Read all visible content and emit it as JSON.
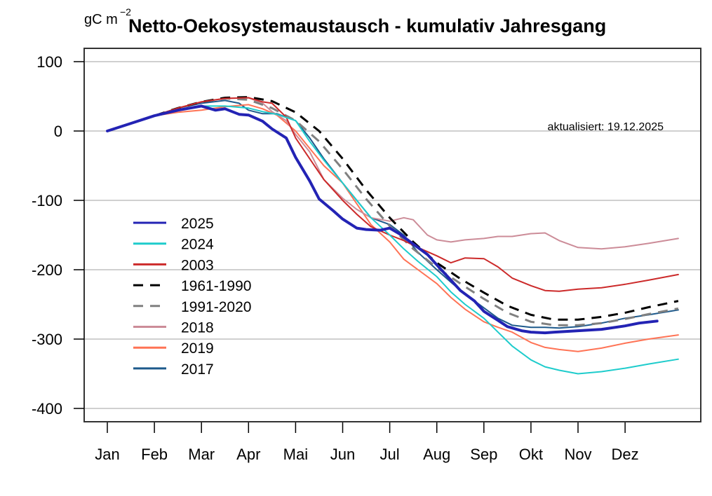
{
  "chart_data": {
    "type": "line",
    "title": "Netto-Oekosystemaustausch - kumulativ Jahresgang",
    "ylabel_unit": "gC m",
    "ylabel_unit_exponent": "−2",
    "xlabel": "",
    "annotation": "aktualisiert: 19.12.2025",
    "x_unit": "months since Jan 1",
    "xlim": [
      -0.5,
      12.3
    ],
    "ylim": [
      -420,
      120
    ],
    "yticks": [
      100,
      0,
      -100,
      -200,
      -300,
      -400
    ],
    "ytick_labels": [
      "100",
      "0",
      "-100",
      "-200",
      "-300",
      "-400"
    ],
    "xticks": [
      0,
      1,
      2,
      3,
      4,
      5,
      6,
      7,
      8,
      9,
      10,
      11
    ],
    "xtick_labels": [
      "Jan",
      "Feb",
      "Mar",
      "Apr",
      "Mai",
      "Jun",
      "Jul",
      "Aug",
      "Sep",
      "Okt",
      "Nov",
      "Dez"
    ],
    "grid": "horizontal",
    "legend_position": "left-center",
    "series": [
      {
        "name": "2025",
        "color": "#2323b4",
        "dash": false,
        "width": 4,
        "x": [
          0,
          0.5,
          1,
          1.5,
          2,
          2.3,
          2.5,
          2.8,
          3,
          3.3,
          3.5,
          3.8,
          4,
          4.3,
          4.5,
          4.8,
          5,
          5.3,
          5.5,
          5.8,
          6,
          6.2,
          6.5,
          6.8,
          7,
          7.3,
          7.5,
          7.8,
          8,
          8.3,
          8.5,
          8.8,
          9,
          9.3,
          9.5,
          10,
          10.5,
          11,
          11.3,
          11.68
        ],
        "y": [
          0,
          11,
          22,
          30,
          36,
          30,
          32,
          24,
          23,
          14,
          3,
          -10,
          -38,
          -72,
          -98,
          -115,
          -127,
          -140,
          -142,
          -143,
          -140,
          -148,
          -163,
          -178,
          -193,
          -215,
          -230,
          -245,
          -260,
          -273,
          -282,
          -288,
          -290,
          -291,
          -290,
          -288,
          -286,
          -281,
          -277,
          -274
        ]
      },
      {
        "name": "2024",
        "color": "#1ecccc",
        "dash": false,
        "width": 2,
        "x": [
          0,
          0.5,
          1,
          1.5,
          2,
          2.5,
          3,
          3.3,
          3.6,
          4,
          4.3,
          4.6,
          5,
          5.3,
          5.6,
          6,
          6.3,
          6.6,
          7,
          7.3,
          7.6,
          8,
          8.3,
          8.6,
          9,
          9.3,
          9.6,
          10,
          10.5,
          11,
          11.5,
          12.13
        ],
        "y": [
          0,
          11,
          22,
          30,
          36,
          36,
          33,
          28,
          24,
          15,
          -15,
          -42,
          -75,
          -100,
          -125,
          -150,
          -170,
          -188,
          -210,
          -232,
          -250,
          -270,
          -290,
          -310,
          -330,
          -340,
          -345,
          -350,
          -347,
          -342,
          -336,
          -329
        ]
      },
      {
        "name": "2003",
        "color": "#cc2a2a",
        "dash": false,
        "width": 2,
        "x": [
          0,
          0.5,
          1,
          1.5,
          2,
          2.5,
          3,
          3.3,
          3.5,
          3.8,
          4,
          4.3,
          4.6,
          5,
          5.3,
          5.6,
          6,
          6.3,
          6.6,
          7,
          7.3,
          7.6,
          8,
          8.3,
          8.6,
          9,
          9.3,
          9.6,
          10,
          10.5,
          11,
          11.5,
          12.13
        ],
        "y": [
          0,
          11,
          22,
          33,
          42,
          47,
          48,
          42,
          40,
          20,
          -10,
          -40,
          -70,
          -100,
          -120,
          -138,
          -150,
          -158,
          -168,
          -180,
          -190,
          -183,
          -184,
          -196,
          -212,
          -223,
          -230,
          -231,
          -228,
          -226,
          -221,
          -215,
          -207
        ]
      },
      {
        "name": "1961-1990",
        "color": "#000000",
        "dash": true,
        "width": 3,
        "x": [
          0,
          0.5,
          1,
          1.5,
          2,
          2.5,
          3,
          3.5,
          4,
          4.5,
          5,
          5.5,
          6,
          6.5,
          7,
          7.5,
          8,
          8.5,
          9,
          9.5,
          10,
          10.5,
          11,
          11.5,
          12.13
        ],
        "y": [
          0,
          11,
          22,
          33,
          42,
          48,
          49,
          43,
          27,
          0,
          -40,
          -85,
          -125,
          -160,
          -190,
          -213,
          -233,
          -252,
          -265,
          -272,
          -272,
          -268,
          -262,
          -254,
          -245
        ]
      },
      {
        "name": "1991-2020",
        "color": "#808080",
        "dash": true,
        "width": 3,
        "x": [
          0,
          0.5,
          1,
          1.5,
          2,
          2.5,
          3,
          3.5,
          4,
          4.5,
          5,
          5.5,
          6,
          6.5,
          7,
          7.5,
          8,
          8.5,
          9,
          9.5,
          10,
          10.5,
          11,
          11.5,
          12.13
        ],
        "y": [
          0,
          11,
          22,
          33,
          42,
          47,
          45,
          33,
          15,
          -15,
          -55,
          -98,
          -137,
          -170,
          -197,
          -220,
          -242,
          -262,
          -275,
          -280,
          -280,
          -277,
          -271,
          -264,
          -256
        ]
      },
      {
        "name": "2018",
        "color": "#cc8c98",
        "dash": false,
        "width": 2,
        "x": [
          0,
          0.5,
          1,
          1.5,
          2,
          2.5,
          3,
          3.3,
          3.5,
          3.8,
          4,
          4.3,
          4.6,
          5,
          5.3,
          5.6,
          6,
          6.3,
          6.5,
          6.8,
          7,
          7.3,
          7.6,
          8,
          8.3,
          8.6,
          9,
          9.3,
          9.6,
          10,
          10.5,
          11,
          11.5,
          12.13
        ],
        "y": [
          0,
          11,
          22,
          33,
          42,
          47,
          48,
          40,
          28,
          15,
          -5,
          -30,
          -70,
          -97,
          -113,
          -125,
          -130,
          -125,
          -128,
          -150,
          -157,
          -160,
          -157,
          -155,
          -152,
          -152,
          -148,
          -147,
          -158,
          -168,
          -170,
          -167,
          -162,
          -155
        ]
      },
      {
        "name": "2019",
        "color": "#ff7355",
        "dash": false,
        "width": 2,
        "x": [
          0,
          0.5,
          1,
          1.5,
          2,
          2.5,
          3,
          3.3,
          3.6,
          4,
          4.3,
          4.6,
          5,
          5.3,
          5.6,
          6,
          6.3,
          6.6,
          7,
          7.3,
          7.6,
          8,
          8.3,
          8.6,
          9,
          9.3,
          9.6,
          10,
          10.5,
          11,
          11.5,
          12.13
        ],
        "y": [
          0,
          11,
          22,
          27,
          30,
          35,
          38,
          32,
          23,
          0,
          -25,
          -50,
          -75,
          -105,
          -135,
          -160,
          -185,
          -200,
          -220,
          -240,
          -257,
          -275,
          -283,
          -290,
          -305,
          -312,
          -315,
          -318,
          -313,
          -306,
          -300,
          -294
        ]
      },
      {
        "name": "2017",
        "color": "#1e5a8c",
        "dash": false,
        "width": 2,
        "x": [
          0,
          0.5,
          1,
          1.5,
          2,
          2.5,
          2.8,
          3,
          3.3,
          3.6,
          4,
          4.3,
          4.6,
          5,
          5.3,
          5.6,
          6,
          6.3,
          6.6,
          7,
          7.3,
          7.6,
          8,
          8.3,
          8.6,
          9,
          9.3,
          9.6,
          10,
          10.5,
          11,
          11.5,
          12.13
        ],
        "y": [
          0,
          11,
          22,
          33,
          40,
          44,
          40,
          30,
          25,
          25,
          15,
          -10,
          -40,
          -75,
          -100,
          -125,
          -135,
          -150,
          -175,
          -200,
          -218,
          -235,
          -255,
          -270,
          -280,
          -283,
          -283,
          -284,
          -282,
          -277,
          -270,
          -265,
          -258
        ]
      }
    ]
  }
}
